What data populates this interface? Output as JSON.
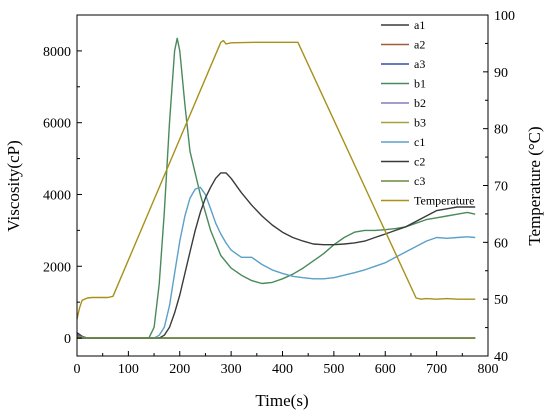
{
  "chart_data": {
    "type": "line",
    "title": "",
    "xlabel": "Time(s)",
    "ylabel": "Viscosity(cP)",
    "y2label": "Temperature (°C)",
    "xlim": [
      0,
      800
    ],
    "ylim": [
      -500,
      9000
    ],
    "y2lim": [
      40,
      100
    ],
    "xticks": [
      0,
      100,
      200,
      300,
      400,
      500,
      600,
      700,
      800
    ],
    "yticks": [
      0,
      2000,
      4000,
      6000,
      8000
    ],
    "y2ticks": [
      40,
      50,
      60,
      70,
      80,
      90,
      100
    ],
    "grid": false,
    "legend_position": "top-right",
    "series": [
      {
        "name": "a1",
        "color": "#3a3a3a",
        "axis": "left",
        "x": [
          0,
          5,
          10,
          20,
          100,
          200,
          300,
          400,
          500,
          600,
          700,
          775
        ],
        "y": [
          150,
          100,
          50,
          0,
          0,
          0,
          0,
          0,
          0,
          0,
          0,
          0
        ]
      },
      {
        "name": "a2",
        "color": "#a05a3c",
        "axis": "left",
        "x": [
          0,
          5,
          10,
          20,
          100,
          200,
          300,
          400,
          500,
          600,
          700,
          775
        ],
        "y": [
          100,
          70,
          30,
          0,
          0,
          0,
          0,
          0,
          0,
          0,
          0,
          0
        ]
      },
      {
        "name": "a3",
        "color": "#3a4fa8",
        "axis": "left",
        "x": [
          0,
          20,
          100,
          200,
          300,
          400,
          500,
          600,
          700,
          775
        ],
        "y": [
          80,
          0,
          0,
          0,
          0,
          0,
          0,
          0,
          0,
          0
        ]
      },
      {
        "name": "b1",
        "color": "#4a8a5a",
        "axis": "left",
        "x": [
          0,
          100,
          140,
          150,
          160,
          170,
          180,
          190,
          195,
          200,
          210,
          220,
          240,
          260,
          280,
          300,
          320,
          340,
          360,
          380,
          400,
          420,
          440,
          460,
          480,
          500,
          520,
          540,
          560,
          580,
          600,
          620,
          640,
          660,
          680,
          700,
          720,
          740,
          760,
          775
        ],
        "y": [
          0,
          0,
          0,
          300,
          1500,
          3500,
          6000,
          8000,
          8350,
          8000,
          6500,
          5200,
          4000,
          3000,
          2300,
          1950,
          1750,
          1600,
          1520,
          1550,
          1650,
          1780,
          1950,
          2150,
          2350,
          2600,
          2800,
          2950,
          3000,
          3000,
          3020,
          3050,
          3100,
          3200,
          3300,
          3350,
          3400,
          3450,
          3500,
          3450
        ]
      },
      {
        "name": "b2",
        "color": "#8a7ac0",
        "axis": "left",
        "x": [
          0,
          20,
          100,
          200,
          300,
          400,
          500,
          600,
          700,
          775
        ],
        "y": [
          60,
          0,
          0,
          0,
          0,
          0,
          0,
          0,
          0,
          0
        ]
      },
      {
        "name": "b3",
        "color": "#a8a03a",
        "axis": "left",
        "x": [
          0,
          20,
          100,
          200,
          300,
          400,
          500,
          600,
          700,
          775
        ],
        "y": [
          40,
          0,
          0,
          0,
          0,
          0,
          0,
          0,
          0,
          0
        ]
      },
      {
        "name": "c1",
        "color": "#5aa0c8",
        "axis": "left",
        "x": [
          0,
          150,
          160,
          170,
          180,
          190,
          200,
          210,
          220,
          230,
          240,
          250,
          260,
          270,
          280,
          290,
          300,
          320,
          340,
          360,
          380,
          400,
          420,
          440,
          460,
          480,
          500,
          520,
          540,
          560,
          580,
          600,
          620,
          640,
          660,
          680,
          700,
          720,
          740,
          760,
          775
        ],
        "y": [
          0,
          0,
          80,
          300,
          900,
          1800,
          2700,
          3400,
          3900,
          4150,
          4200,
          4000,
          3600,
          3200,
          2900,
          2650,
          2450,
          2250,
          2250,
          2050,
          1900,
          1800,
          1720,
          1680,
          1650,
          1650,
          1680,
          1750,
          1820,
          1900,
          2000,
          2100,
          2250,
          2400,
          2550,
          2700,
          2800,
          2780,
          2800,
          2820,
          2800
        ]
      },
      {
        "name": "c2",
        "color": "#3a3a3a",
        "axis": "left",
        "x": [
          0,
          160,
          170,
          180,
          190,
          200,
          210,
          220,
          230,
          240,
          250,
          260,
          270,
          280,
          290,
          300,
          320,
          340,
          360,
          380,
          400,
          420,
          440,
          460,
          480,
          500,
          520,
          540,
          560,
          580,
          600,
          620,
          640,
          660,
          680,
          700,
          720,
          740,
          760,
          775
        ],
        "y": [
          0,
          0,
          80,
          300,
          700,
          1200,
          1800,
          2400,
          3000,
          3500,
          3900,
          4200,
          4450,
          4600,
          4600,
          4450,
          4050,
          3700,
          3400,
          3150,
          2950,
          2800,
          2700,
          2620,
          2600,
          2600,
          2620,
          2650,
          2700,
          2800,
          2900,
          3000,
          3100,
          3250,
          3400,
          3550,
          3600,
          3650,
          3650,
          3650
        ]
      },
      {
        "name": "c3",
        "color": "#6a8a3a",
        "axis": "left",
        "x": [
          0,
          20,
          100,
          200,
          300,
          400,
          500,
          600,
          700,
          775
        ],
        "y": [
          30,
          0,
          0,
          0,
          0,
          0,
          0,
          0,
          0,
          0
        ]
      },
      {
        "name": "Temperature",
        "color": "#a8901a",
        "axis": "right",
        "x": [
          0,
          5,
          10,
          20,
          30,
          40,
          50,
          60,
          70,
          280,
          285,
          290,
          300,
          350,
          400,
          430,
          660,
          670,
          680,
          700,
          720,
          740,
          760,
          775
        ],
        "y": [
          46.5,
          48.5,
          49.8,
          50.2,
          50.3,
          50.3,
          50.3,
          50.3,
          50.5,
          95.2,
          95.5,
          94.9,
          95.1,
          95.2,
          95.2,
          95.2,
          50.2,
          50.0,
          50.1,
          50.0,
          50.1,
          50.0,
          50.0,
          50.0
        ]
      }
    ]
  }
}
